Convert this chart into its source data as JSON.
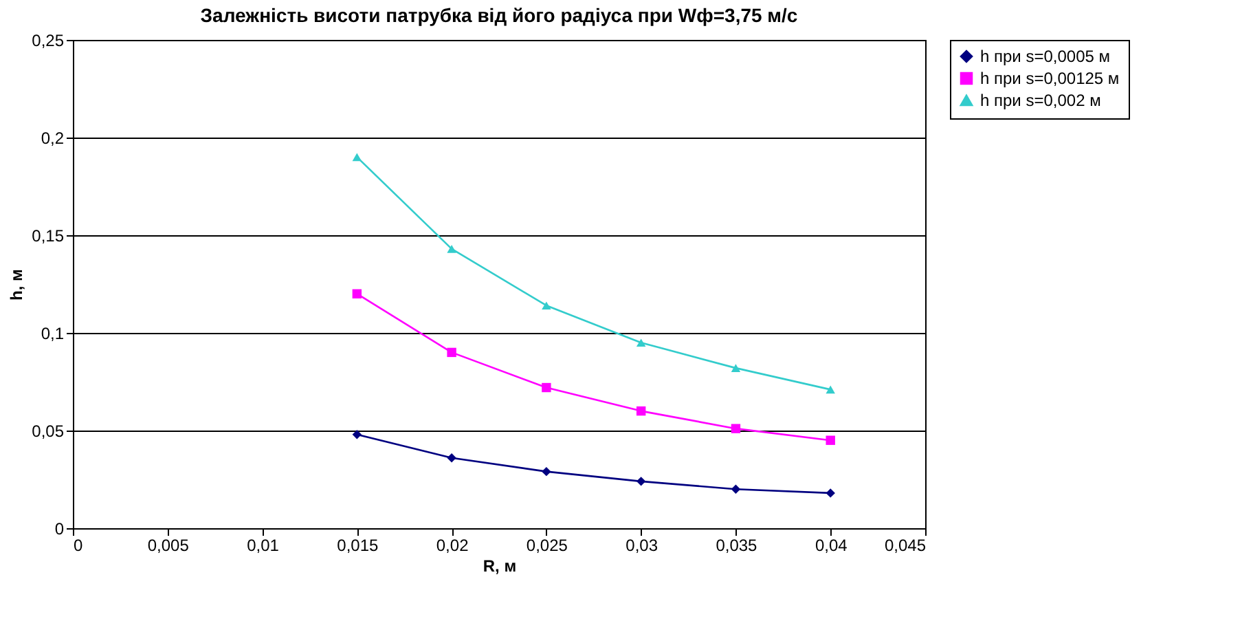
{
  "chart_data": {
    "type": "line",
    "title": "Залежність висоти патрубка від його радіуса при Wф=3,75 м/с",
    "xlabel": "R, м",
    "ylabel": "h, м",
    "x": [
      0.015,
      0.02,
      0.025,
      0.03,
      0.035,
      0.04
    ],
    "series": [
      {
        "name": "h при s=0,0005 м",
        "color": "#000080",
        "marker": "diamond",
        "values": [
          0.048,
          0.036,
          0.029,
          0.024,
          0.02,
          0.018
        ]
      },
      {
        "name": "h при s=0,00125 м",
        "color": "#ff00ff",
        "marker": "square",
        "values": [
          0.12,
          0.09,
          0.072,
          0.06,
          0.051,
          0.045
        ]
      },
      {
        "name": "h при s=0,002 м",
        "color": "#33cccc",
        "marker": "triangle",
        "values": [
          0.19,
          0.143,
          0.114,
          0.095,
          0.082,
          0.071
        ]
      }
    ],
    "xlim": [
      0,
      0.045
    ],
    "xticks": [
      0,
      {
        "value": 0.005,
        "label": "0,005"
      },
      {
        "value": 0.01,
        "label": "0,01"
      },
      {
        "value": 0.015,
        "label": "0,015"
      },
      {
        "value": 0.02,
        "label": "0,02"
      },
      {
        "value": 0.025,
        "label": "0,025"
      },
      {
        "value": 0.03,
        "label": "0,03"
      },
      {
        "value": 0.035,
        "label": "0,035"
      },
      {
        "value": 0.04,
        "label": "0,04"
      },
      {
        "value": 0.045,
        "label": "0,045"
      }
    ],
    "ylim": [
      0,
      0.25
    ],
    "yticks": [
      0,
      {
        "value": 0.05,
        "label": "0,05"
      },
      {
        "value": 0.1,
        "label": "0,1"
      },
      {
        "value": 0.15,
        "label": "0,15"
      },
      {
        "value": 0.2,
        "label": "0,2"
      },
      {
        "value": 0.25,
        "label": "0,25"
      }
    ],
    "grid": "y",
    "legend": "right",
    "line_style": "solid"
  }
}
